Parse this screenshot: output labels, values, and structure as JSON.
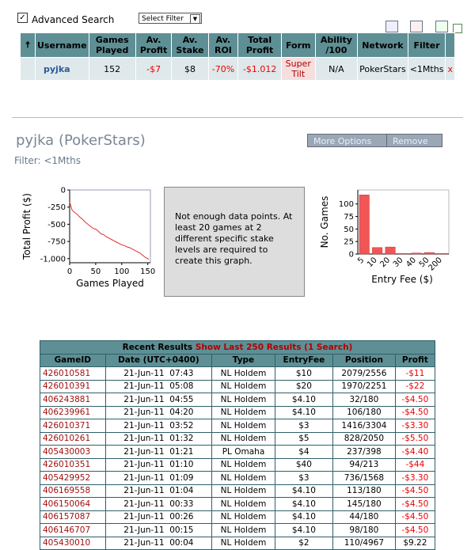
{
  "search": {
    "advanced_label": "Advanced Search",
    "filter_select": "Select Filter"
  },
  "summary": {
    "headers": [
      "Username",
      "Games Played",
      "Av. Profit",
      "Av. Stake",
      "Av. ROI",
      "Total Profit",
      "Form",
      "Ability /100",
      "Network",
      "Filter"
    ],
    "row": [
      "pyjka",
      "152",
      "-$7",
      "$8",
      "-70%",
      "-$1.012",
      "Super Tilt",
      "N/A",
      "PokerStars",
      "<1Mths",
      "x"
    ]
  },
  "player": {
    "title": "pyjka (PokerStars)",
    "filter": "Filter: <1Mths",
    "buttons": [
      "More Options",
      "Remove"
    ]
  },
  "chart_data": [
    {
      "type": "line",
      "ylabel": "Total Profit ($)",
      "xlabel": "Games Played",
      "color": "#e03030",
      "x": [
        0,
        5,
        10,
        15,
        20,
        25,
        30,
        35,
        40,
        45,
        50,
        55,
        60,
        65,
        70,
        75,
        80,
        85,
        90,
        95,
        100,
        105,
        110,
        115,
        120,
        125,
        130,
        135,
        140,
        145,
        150,
        152
      ],
      "values": [
        -180,
        -300,
        -330,
        -360,
        -400,
        -430,
        -470,
        -500,
        -530,
        -560,
        -570,
        -600,
        -640,
        -650,
        -680,
        -700,
        -720,
        -740,
        -760,
        -780,
        -800,
        -810,
        -830,
        -840,
        -860,
        -880,
        -900,
        -920,
        -950,
        -980,
        -1000,
        -1012
      ],
      "xlim": [
        0,
        155
      ],
      "xticks": [
        0,
        50,
        100,
        150
      ],
      "ylim": [
        -1060,
        0
      ],
      "yticks": [
        0,
        -250,
        -500,
        -750,
        {
          "value": -1000,
          "label": "-1,000"
        }
      ]
    },
    {
      "type": "bar",
      "ylabel": "No. Games",
      "xlabel": "Entry Fee ($)",
      "color": "#f25555",
      "categories": [
        "5",
        "10",
        "20",
        "30",
        "40",
        "50",
        "200"
      ],
      "values": [
        118,
        13,
        14,
        1,
        2,
        3,
        1
      ],
      "ylim": [
        0,
        128
      ],
      "yticks": [
        0,
        25,
        50,
        75,
        100
      ]
    }
  ],
  "message": "Not enough data points. At least 20 games at 2 different specific stake levels are required to create this graph.",
  "results": {
    "title": "Recent Results",
    "link": "Show Last 250 Results (1 Search)",
    "headers": [
      "GameID",
      "Date (UTC+0400)",
      "Type",
      "EntryFee",
      "Position",
      "Profit"
    ],
    "rows": [
      [
        "426010581",
        "21-Jun-11  07:43",
        "NL Holdem",
        "$10",
        "2079/2556",
        "-$11"
      ],
      [
        "426010391",
        "21-Jun-11  05:08",
        "NL Holdem",
        "$20",
        "1970/2251",
        "-$22"
      ],
      [
        "406243881",
        "21-Jun-11  04:55",
        "NL Holdem",
        "$4.10",
        "32/180",
        "-$4.50"
      ],
      [
        "406239961",
        "21-Jun-11  04:20",
        "NL Holdem",
        "$4.10",
        "106/180",
        "-$4.50"
      ],
      [
        "426010371",
        "21-Jun-11  03:52",
        "NL Holdem",
        "$3",
        "1416/3304",
        "-$3.30"
      ],
      [
        "426010261",
        "21-Jun-11  01:32",
        "NL Holdem",
        "$5",
        "828/2050",
        "-$5.50"
      ],
      [
        "405430003",
        "21-Jun-11  01:21",
        "PL Omaha",
        "$4",
        "237/398",
        "-$4.40"
      ],
      [
        "426010351",
        "21-Jun-11  01:10",
        "NL Holdem",
        "$40",
        "94/213",
        "-$44"
      ],
      [
        "405429952",
        "21-Jun-11  01:09",
        "NL Holdem",
        "$3",
        "736/1568",
        "-$3.30"
      ],
      [
        "406169558",
        "21-Jun-11  01:04",
        "NL Holdem",
        "$4.10",
        "113/180",
        "-$4.50"
      ],
      [
        "406150064",
        "21-Jun-11  00:33",
        "NL Holdem",
        "$4.10",
        "145/180",
        "-$4.50"
      ],
      [
        "406157087",
        "21-Jun-11  00:26",
        "NL Holdem",
        "$4.10",
        "44/180",
        "-$4.50"
      ],
      [
        "406146707",
        "21-Jun-11  00:15",
        "NL Holdem",
        "$4.10",
        "98/180",
        "-$4.50"
      ],
      [
        "405430010",
        "21-Jun-11  00:04",
        "NL Holdem",
        "$2",
        "110/4967",
        "$9.22"
      ]
    ]
  }
}
